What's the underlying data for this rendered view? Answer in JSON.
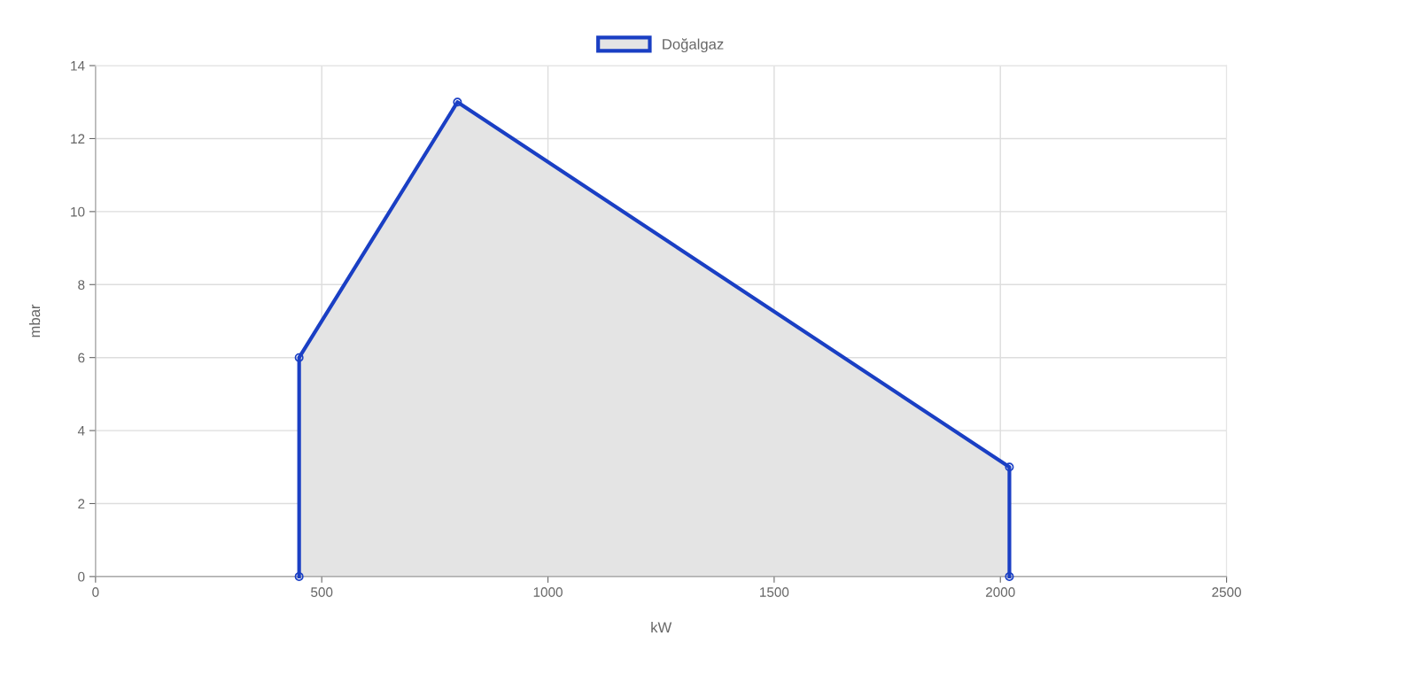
{
  "chart_data": {
    "type": "area",
    "xlabel": "kW",
    "ylabel": "mbar",
    "x": [
      450,
      450,
      800,
      2020,
      2020
    ],
    "series": [
      {
        "name": "Doğalgaz",
        "color": "#1a3fc4",
        "values": [
          0,
          6,
          13,
          3,
          0
        ]
      }
    ],
    "xlim": [
      0,
      2500
    ],
    "xticks": [
      0,
      500,
      1000,
      1500,
      2000,
      2500
    ],
    "ylim": [
      0,
      14
    ],
    "yticks": [
      0,
      2,
      4,
      6,
      8,
      10,
      12,
      14
    ],
    "grid": true,
    "legend": "top",
    "marker": "circle",
    "line_style": "solid"
  }
}
